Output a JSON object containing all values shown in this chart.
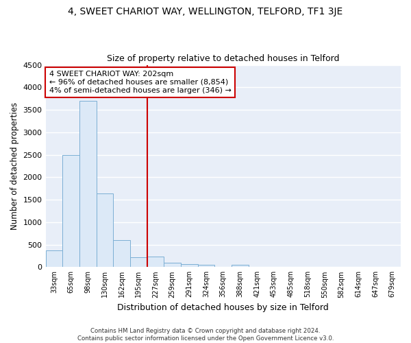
{
  "title1": "4, SWEET CHARIOT WAY, WELLINGTON, TELFORD, TF1 3JE",
  "title2": "Size of property relative to detached houses in Telford",
  "xlabel": "Distribution of detached houses by size in Telford",
  "ylabel": "Number of detached properties",
  "bin_labels": [
    "33sqm",
    "65sqm",
    "98sqm",
    "130sqm",
    "162sqm",
    "195sqm",
    "227sqm",
    "259sqm",
    "291sqm",
    "324sqm",
    "356sqm",
    "388sqm",
    "421sqm",
    "453sqm",
    "485sqm",
    "518sqm",
    "550sqm",
    "582sqm",
    "614sqm",
    "647sqm",
    "679sqm"
  ],
  "bar_values": [
    375,
    2500,
    3700,
    1640,
    600,
    220,
    230,
    100,
    70,
    55,
    0,
    50,
    0,
    0,
    0,
    0,
    0,
    0,
    0,
    0,
    0
  ],
  "bar_color": "#dce9f7",
  "bar_edge_color": "#7bafd4",
  "vline_x_index": 5.5,
  "vline_color": "#cc0000",
  "annotation_text": "4 SWEET CHARIOT WAY: 202sqm\n← 96% of detached houses are smaller (8,854)\n4% of semi-detached houses are larger (346) →",
  "annotation_box_color": "#ffffff",
  "annotation_box_edge": "#cc0000",
  "ylim": [
    0,
    4500
  ],
  "yticks": [
    0,
    500,
    1000,
    1500,
    2000,
    2500,
    3000,
    3500,
    4000,
    4500
  ],
  "bg_color": "#e8eef8",
  "grid_color": "#ffffff",
  "footer": "Contains HM Land Registry data © Crown copyright and database right 2024.\nContains public sector information licensed under the Open Government Licence v3.0.",
  "title1_fontsize": 10,
  "title2_fontsize": 9,
  "xlabel_fontsize": 9,
  "ylabel_fontsize": 8.5
}
